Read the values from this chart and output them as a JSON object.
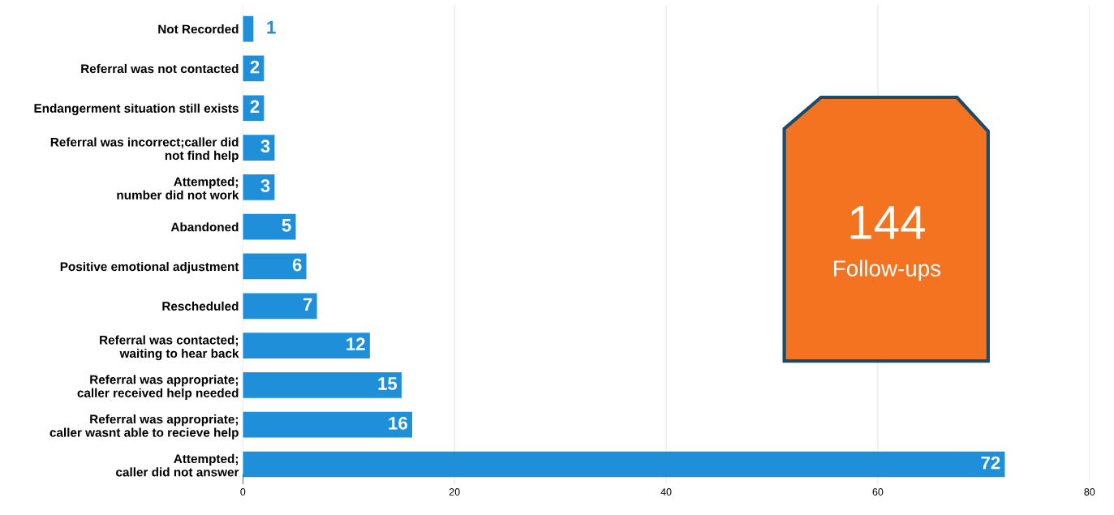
{
  "chart_data": {
    "type": "bar",
    "orientation": "horizontal",
    "categories": [
      "Not Recorded",
      "Referral was not contacted",
      "Endangerment situation still exists",
      "Referral was incorrect;caller did\nnot find help",
      "Attempted;\nnumber did not work",
      "Abandoned",
      "Positive emotional adjustment",
      "Rescheduled",
      "Referral was contacted;\nwaiting to hear back",
      "Referral was appropriate;\ncaller received help needed",
      "Referral was appropriate;\ncaller wasnt able to recieve help",
      "Attempted;\ncaller did not answer"
    ],
    "values": [
      1,
      2,
      2,
      3,
      3,
      5,
      6,
      7,
      12,
      15,
      16,
      72
    ],
    "color": "#1e8fd8",
    "xlim": [
      0,
      80
    ],
    "xticks": [
      0,
      20,
      40,
      60,
      80
    ],
    "grid": "x",
    "data_labels": true,
    "annotations": [
      "144",
      "Follow-ups"
    ]
  }
}
